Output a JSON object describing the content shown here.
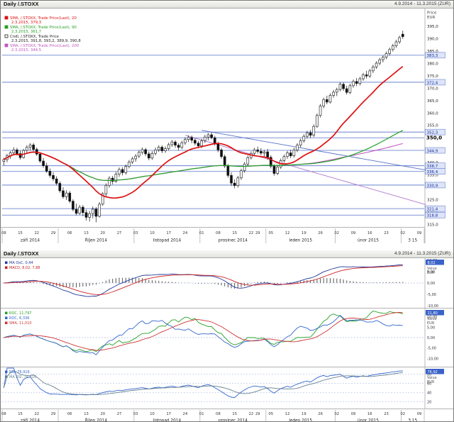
{
  "main": {
    "title": "Daily /.STOXX",
    "range": "4.9.2014 - 11.3.2015 (ZUR)"
  },
  "indicators": {
    "title": "Daily /.STOXX",
    "range": "4.9.2014 - 11.3.2015 (ZUR)"
  },
  "chart_data": [
    {
      "type": "candlestick",
      "name": "price-panel",
      "axis_title": [
        "Price",
        "EUR"
      ],
      "ylim": [
        314,
        397
      ],
      "slots": 128,
      "yticks": [
        {
          "v": 395,
          "label": "395,0"
        },
        {
          "v": 390,
          "label": "390,0"
        },
        {
          "v": 385,
          "label": "385,0"
        },
        {
          "v": 380,
          "label": "380,0"
        },
        {
          "v": 375,
          "label": "375,0"
        },
        {
          "v": 370,
          "label": "370,0"
        },
        {
          "v": 365,
          "label": "365,0"
        },
        {
          "v": 360,
          "label": "360,0"
        },
        {
          "v": 355,
          "label": "355,0"
        },
        {
          "v": 350,
          "label": "350,0"
        },
        {
          "v": 345,
          "label": "345,0"
        },
        {
          "v": 340,
          "label": "340,0"
        },
        {
          "v": 335,
          "label": "335,0"
        },
        {
          "v": 330,
          "label": "330,0"
        },
        {
          "v": 325,
          "label": "325,0"
        },
        {
          "v": 320,
          "label": "320,0"
        },
        {
          "v": 315,
          "label": "315,0"
        }
      ],
      "levels": [
        {
          "v": 383.3,
          "label": "383,3"
        },
        {
          "v": 372.4,
          "label": "372,4"
        },
        {
          "v": 352.3,
          "label": "352,3"
        },
        {
          "v": 350.0,
          "label": "350,0",
          "bold": true
        },
        {
          "v": 344.9,
          "label": "344,9"
        },
        {
          "v": 338.7,
          "label": "338,7"
        },
        {
          "v": 336.4,
          "label": "336,4"
        },
        {
          "v": 330.9,
          "label": "330,9"
        },
        {
          "v": 321.4,
          "label": "321,4"
        },
        {
          "v": 318.8,
          "label": "318,8"
        }
      ],
      "months": [
        {
          "label": "září 2014",
          "start": 0,
          "end": 17
        },
        {
          "label": "Říjen 2014",
          "start": 17,
          "end": 40
        },
        {
          "label": "listopad 2014",
          "start": 40,
          "end": 60
        },
        {
          "label": "prosinec 2014",
          "start": 60,
          "end": 80
        },
        {
          "label": "leden 2015",
          "start": 80,
          "end": 101
        },
        {
          "label": "únor 2015",
          "start": 101,
          "end": 121
        },
        {
          "label": "3 15",
          "start": 121,
          "end": 128
        }
      ],
      "day_ticks": [
        {
          "label": "08",
          "i": 0
        },
        {
          "label": "15",
          "i": 5
        },
        {
          "label": "22",
          "i": 10
        },
        {
          "label": "29",
          "i": 15
        },
        {
          "label": "06",
          "i": 20
        },
        {
          "label": "13",
          "i": 25
        },
        {
          "label": "20",
          "i": 30
        },
        {
          "label": "27",
          "i": 35
        },
        {
          "label": "03",
          "i": 40
        },
        {
          "label": "10",
          "i": 45
        },
        {
          "label": "17",
          "i": 50
        },
        {
          "label": "24",
          "i": 55
        },
        {
          "label": "01",
          "i": 60
        },
        {
          "label": "08",
          "i": 65
        },
        {
          "label": "15",
          "i": 70
        },
        {
          "label": "22",
          "i": 75
        },
        {
          "label": "29",
          "i": 77
        },
        {
          "label": "05",
          "i": 81
        },
        {
          "label": "12",
          "i": 86
        },
        {
          "label": "19",
          "i": 91
        },
        {
          "label": "26",
          "i": 96
        },
        {
          "label": "02",
          "i": 101
        },
        {
          "label": "09",
          "i": 106
        },
        {
          "label": "16",
          "i": 111
        },
        {
          "label": "23",
          "i": 116
        },
        {
          "label": "02",
          "i": 121
        },
        {
          "label": "09",
          "i": 126
        }
      ],
      "legend": [
        {
          "line1": "SMA, /.STOXX, Trade Price(Last), 20",
          "line2": "2.3.2015, 379,3",
          "color": "#dd1111"
        },
        {
          "line1": "SMA, /.STOXX, Trade Price(Last), 90",
          "line2": "2.3.2015, 361,7",
          "color": "#22a022"
        },
        {
          "line1": "Cndl, /.STOXX, Trade Price",
          "line2": "2.3.2015, 391,8, 393,2, 389,9, 390,8",
          "color": "#222222"
        },
        {
          "line1": "SMA, /.STOXX, Trade Price(Last), 200",
          "line2": "2.3.2015, 344,5",
          "color": "#c055c0"
        }
      ],
      "smas": [
        {
          "period": 200,
          "color": "#c055c0",
          "width": 1.1
        },
        {
          "period": 90,
          "color": "#22a022",
          "width": 1.2
        },
        {
          "period": 20,
          "color": "#dd1111",
          "width": 1.7
        }
      ],
      "trendlines": [
        {
          "i1": 60,
          "p1": 353,
          "i2": 128,
          "p2": 337,
          "color": "#5570c8",
          "width": 0.9
        },
        {
          "i1": 55,
          "p1": 351,
          "i2": 128,
          "p2": 323,
          "color": "#b077cc",
          "width": 0.9
        }
      ],
      "candles": [
        [
          340.5,
          342,
          338.9,
          341.2
        ],
        [
          341.2,
          343.5,
          340.1,
          342.8
        ],
        [
          342.8,
          344.6,
          341.5,
          343.9
        ],
        [
          343.9,
          346.2,
          342.8,
          345.1
        ],
        [
          345.1,
          345.9,
          342.9,
          343.6
        ],
        [
          343.6,
          344.8,
          341.2,
          342
        ],
        [
          342,
          345.5,
          341.6,
          344.9
        ],
        [
          344.9,
          347,
          343.8,
          346.2
        ],
        [
          346.2,
          347.8,
          344.9,
          347.1
        ],
        [
          347.1,
          347.9,
          344.6,
          345.3
        ],
        [
          345.3,
          346.1,
          342.7,
          343.4
        ],
        [
          343.4,
          344.2,
          339.8,
          340.6
        ],
        [
          340.6,
          341.8,
          337.9,
          338.7
        ],
        [
          338.7,
          339.9,
          335.8,
          336.5
        ],
        [
          336.5,
          337.6,
          333.9,
          334.8
        ],
        [
          334.8,
          336,
          332.5,
          333.4
        ],
        [
          333.4,
          334.5,
          330.8,
          331.6
        ],
        [
          331.6,
          332.4,
          327.8,
          328.6
        ],
        [
          328.6,
          330,
          325.4,
          326.2
        ],
        [
          326.2,
          328.8,
          324.9,
          327.7
        ],
        [
          327.7,
          328.5,
          323.6,
          324.4
        ],
        [
          324.4,
          325.2,
          320.3,
          321.1
        ],
        [
          321.1,
          323.4,
          318.7,
          319.5
        ],
        [
          319.5,
          322.9,
          318.9,
          322
        ],
        [
          322,
          322.8,
          318.4,
          319.8
        ],
        [
          319.8,
          321,
          316.6,
          317.9
        ],
        [
          317.9,
          320.5,
          316.2,
          319.4
        ],
        [
          319.4,
          322.3,
          317.5,
          321.2
        ],
        [
          321.2,
          322,
          315.9,
          318.3
        ],
        [
          318.3,
          324,
          317.8,
          323.2
        ],
        [
          323.2,
          328.1,
          322.5,
          327.4
        ],
        [
          327.4,
          331.6,
          326.3,
          330.8
        ],
        [
          330.8,
          334.5,
          329.9,
          333.7
        ],
        [
          333.7,
          334.6,
          331.2,
          332.4
        ],
        [
          332.4,
          336.2,
          331.8,
          335.3
        ],
        [
          335.3,
          338,
          334.2,
          337.2
        ],
        [
          337.2,
          338.1,
          334.8,
          335.9
        ],
        [
          335.9,
          339.2,
          335.1,
          338.4
        ],
        [
          338.4,
          341,
          337.6,
          340.2
        ],
        [
          340.2,
          342.3,
          339.4,
          341.5
        ],
        [
          341.5,
          343.4,
          340.3,
          342.6
        ],
        [
          342.6,
          345,
          341.8,
          344.1
        ],
        [
          344.1,
          346.1,
          343.2,
          345.2
        ],
        [
          345.2,
          345.9,
          342.6,
          343.5
        ],
        [
          343.5,
          344.4,
          340.9,
          341.8
        ],
        [
          341.8,
          344.6,
          341.1,
          343.7
        ],
        [
          343.7,
          346,
          342.9,
          345.1
        ],
        [
          345.1,
          347,
          344.3,
          346.2
        ],
        [
          346.2,
          346.9,
          343.8,
          344.7
        ],
        [
          344.7,
          346.5,
          343.9,
          345.6
        ],
        [
          345.6,
          348,
          344.8,
          347.2
        ],
        [
          347.2,
          349.1,
          346.3,
          348.3
        ],
        [
          348.3,
          349,
          345.9,
          347
        ],
        [
          347,
          347.8,
          344.9,
          346.1
        ],
        [
          346.1,
          348.8,
          345.4,
          348
        ],
        [
          348,
          350.2,
          347.1,
          349.3
        ],
        [
          349.3,
          351,
          348.2,
          350.1
        ],
        [
          350.1,
          350.9,
          347.8,
          349
        ],
        [
          349,
          349.8,
          346.9,
          347.8
        ],
        [
          347.8,
          348.7,
          345.8,
          346.7
        ],
        [
          346.7,
          349.6,
          345.9,
          348.8
        ],
        [
          348.8,
          351.2,
          347.9,
          350.3
        ],
        [
          350.3,
          351.9,
          348.9,
          351.2
        ],
        [
          351.2,
          352.3,
          349.4,
          350
        ],
        [
          350,
          350.8,
          346.8,
          347.7
        ],
        [
          347.7,
          348.3,
          344.2,
          345.1
        ],
        [
          345.1,
          345.9,
          341.6,
          342.4
        ],
        [
          342.4,
          343.2,
          337.8,
          338.6
        ],
        [
          338.6,
          339.4,
          333.9,
          334.8
        ],
        [
          334.8,
          336,
          330.6,
          331.7
        ],
        [
          331.7,
          333.2,
          329.6,
          330.7
        ],
        [
          330.7,
          334.6,
          329.9,
          333.8
        ],
        [
          333.8,
          337.5,
          333,
          336.7
        ],
        [
          336.7,
          340.2,
          335.9,
          339.4
        ],
        [
          339.4,
          342.8,
          338.6,
          342
        ],
        [
          342,
          344.5,
          341.2,
          343.7
        ],
        [
          343.7,
          345.9,
          342.9,
          345.1
        ],
        [
          345.1,
          346.4,
          343.6,
          344.5
        ],
        [
          344.5,
          345.8,
          342.9,
          343.8
        ],
        [
          343.8,
          345.1,
          342.4,
          344.3
        ],
        [
          344.3,
          345.5,
          341.2,
          342.1
        ],
        [
          342.1,
          342.9,
          337.6,
          338.5
        ],
        [
          338.5,
          339.3,
          334.7,
          335.6
        ],
        [
          335.6,
          339,
          334.9,
          338.2
        ],
        [
          338.2,
          341.6,
          337.4,
          340.8
        ],
        [
          340.8,
          343.2,
          339.9,
          342.4
        ],
        [
          342.4,
          344.7,
          341.5,
          343.9
        ],
        [
          343.9,
          345.2,
          341.8,
          342.7
        ],
        [
          342.7,
          345.9,
          342,
          345
        ],
        [
          345,
          347.8,
          344.2,
          347
        ],
        [
          347,
          349.6,
          346.1,
          348.8
        ],
        [
          348.8,
          351.4,
          348,
          350.6
        ],
        [
          350.6,
          352.8,
          349.7,
          352
        ],
        [
          352,
          353.1,
          349.9,
          351
        ],
        [
          351,
          355.4,
          350.3,
          354.6
        ],
        [
          354.6,
          359.8,
          354,
          359
        ],
        [
          359,
          363.6,
          358.2,
          362.8
        ],
        [
          362.8,
          366.2,
          361.9,
          365.4
        ],
        [
          365.4,
          367,
          363.5,
          364.4
        ],
        [
          364.4,
          367.9,
          363.8,
          367.1
        ],
        [
          367.1,
          369.3,
          366.2,
          368.4
        ],
        [
          368.4,
          370.2,
          366.8,
          369.5
        ],
        [
          369.5,
          372.4,
          368.7,
          371.6
        ],
        [
          371.6,
          372.3,
          368.9,
          369.8
        ],
        [
          369.8,
          371,
          367.4,
          368.3
        ],
        [
          368.3,
          371.8,
          367.6,
          371
        ],
        [
          371,
          373.5,
          370.2,
          372.7
        ],
        [
          372.7,
          374.1,
          370.8,
          371.9
        ],
        [
          371.9,
          374.6,
          371.1,
          373.8
        ],
        [
          373.8,
          376.2,
          373,
          375.4
        ],
        [
          375.4,
          377,
          373.9,
          374.9
        ],
        [
          374.9,
          377.8,
          374.2,
          377
        ],
        [
          377,
          379.4,
          376.1,
          378.6
        ],
        [
          378.6,
          380.9,
          377.8,
          380.1
        ],
        [
          380.1,
          382.3,
          379.3,
          381.5
        ],
        [
          381.5,
          383.3,
          380.4,
          382.5
        ],
        [
          382.5,
          384.8,
          381.7,
          384
        ],
        [
          384,
          386.4,
          383.2,
          385.6
        ],
        [
          385.6,
          387.9,
          384.8,
          387.1
        ],
        [
          387.1,
          389.5,
          386.3,
          388.7
        ],
        [
          388.7,
          391.2,
          387.9,
          390.4
        ],
        [
          391.8,
          393.2,
          389.9,
          390.8
        ]
      ]
    },
    {
      "type": "macd",
      "name": "macd-panel",
      "axis_title": [
        "Value",
        "EUR"
      ],
      "legend": [
        {
          "label": "MA OsC, 0,44",
          "color": "#223a99"
        },
        {
          "label": "MACD, 8,02, 7,88",
          "color": "#cc2222"
        }
      ],
      "params": {
        "fast": 12,
        "slow": 26,
        "signal": 9
      },
      "ylim": [
        -11,
        11
      ],
      "yticks": [
        {
          "v": 10,
          "label": "10,00"
        },
        {
          "v": 5,
          "label": "5,00"
        },
        {
          "v": 0,
          "label": "0,00"
        },
        {
          "v": -5,
          "label": "-5,00"
        },
        {
          "v": -10,
          "label": "-10,00"
        }
      ],
      "value_box": "8,02"
    },
    {
      "type": "roc",
      "name": "roc-panel",
      "axis_title": [
        "Value",
        "EUR"
      ],
      "legend": [
        {
          "label": "ROC, 11,797",
          "color": "#28a028"
        },
        {
          "label": "ROC, 6,336",
          "color": "#3366cc"
        },
        {
          "label": "SMA, 11,010",
          "color": "#cc3333"
        }
      ],
      "params": {
        "roc1": 30,
        "roc2": 20,
        "sma": 9
      },
      "ylim": [
        -14,
        14
      ],
      "yticks": [
        {
          "v": 10,
          "label": "10,00"
        },
        {
          "v": 5,
          "label": "5,00"
        },
        {
          "v": 0,
          "label": "0,00"
        },
        {
          "v": -5,
          "label": "-5,00"
        },
        {
          "v": -10,
          "label": "-10,00"
        }
      ],
      "value_box": "11,80"
    },
    {
      "type": "rsi",
      "name": "rsi-panel",
      "axis_title": [
        "Value",
        "EUR"
      ],
      "legend": [
        {
          "label": "RSI, 76,916",
          "color": "#3366cc"
        },
        {
          "label": "MA RSI, 74,410",
          "color": "#66808f"
        }
      ],
      "params": {
        "period": 14,
        "ma": 9
      },
      "ylim": [
        5,
        95
      ],
      "yticks": [
        {
          "v": 80,
          "label": "80"
        },
        {
          "v": 60,
          "label": "60"
        },
        {
          "v": 40,
          "label": "40"
        },
        {
          "v": 20,
          "label": "20"
        }
      ],
      "value_box": "76,92"
    }
  ]
}
